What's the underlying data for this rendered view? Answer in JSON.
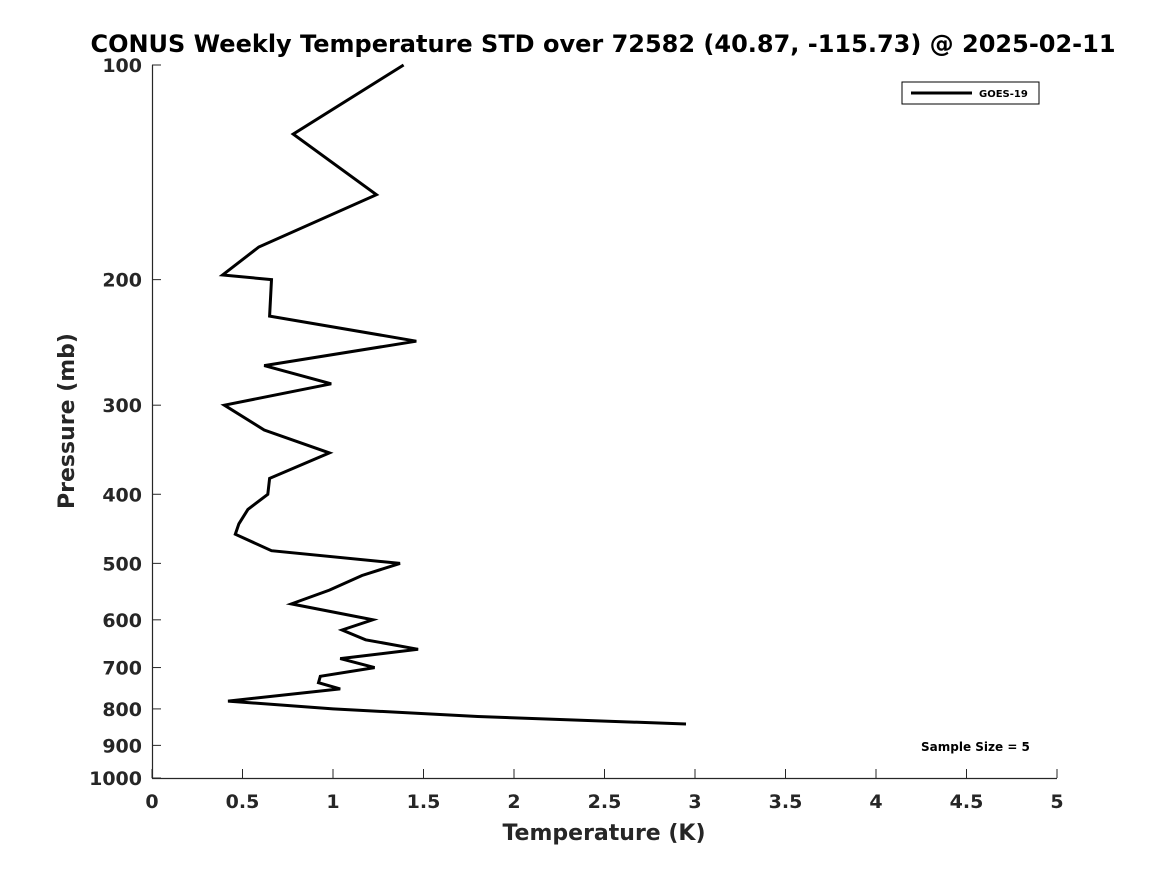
{
  "chart_data": {
    "type": "line",
    "title": "CONUS Weekly Temperature STD over 72582 (40.87, -115.73) @ 2025-02-11",
    "xlabel": "Temperature (K)",
    "ylabel": "Pressure (mb)",
    "xlim": [
      0,
      5
    ],
    "ylim": [
      100,
      1000
    ],
    "y_scale": "log",
    "y_reversed": true,
    "grid": false,
    "legend_position": "top-right",
    "x_ticks": [
      "0",
      "0.5",
      "1",
      "1.5",
      "2",
      "2.5",
      "3",
      "3.5",
      "4",
      "4.5",
      "5"
    ],
    "y_ticks": [
      "100",
      "200",
      "300",
      "400",
      "500",
      "600",
      "700",
      "800",
      "900",
      "1000"
    ],
    "annotation": "Sample Size = 5",
    "series": [
      {
        "name": "GOES-19",
        "color": "#000000",
        "points": [
          {
            "x": 1.39,
            "y": 100
          },
          {
            "x": 0.78,
            "y": 125
          },
          {
            "x": 1.24,
            "y": 152
          },
          {
            "x": 0.59,
            "y": 180
          },
          {
            "x": 0.39,
            "y": 197
          },
          {
            "x": 0.66,
            "y": 200
          },
          {
            "x": 0.65,
            "y": 225
          },
          {
            "x": 1.46,
            "y": 244
          },
          {
            "x": 0.62,
            "y": 264
          },
          {
            "x": 0.99,
            "y": 280
          },
          {
            "x": 0.4,
            "y": 300
          },
          {
            "x": 0.62,
            "y": 325
          },
          {
            "x": 0.98,
            "y": 350
          },
          {
            "x": 0.65,
            "y": 380
          },
          {
            "x": 0.64,
            "y": 400
          },
          {
            "x": 0.53,
            "y": 420
          },
          {
            "x": 0.48,
            "y": 440
          },
          {
            "x": 0.46,
            "y": 455
          },
          {
            "x": 0.66,
            "y": 480
          },
          {
            "x": 1.37,
            "y": 500
          },
          {
            "x": 1.16,
            "y": 520
          },
          {
            "x": 0.98,
            "y": 545
          },
          {
            "x": 0.77,
            "y": 570
          },
          {
            "x": 1.22,
            "y": 600
          },
          {
            "x": 1.05,
            "y": 620
          },
          {
            "x": 1.18,
            "y": 640
          },
          {
            "x": 1.47,
            "y": 660
          },
          {
            "x": 1.04,
            "y": 680
          },
          {
            "x": 1.23,
            "y": 700
          },
          {
            "x": 0.93,
            "y": 720
          },
          {
            "x": 0.92,
            "y": 735
          },
          {
            "x": 1.04,
            "y": 750
          },
          {
            "x": 0.42,
            "y": 780
          },
          {
            "x": 1.0,
            "y": 800
          },
          {
            "x": 1.8,
            "y": 820
          },
          {
            "x": 2.95,
            "y": 840
          }
        ]
      }
    ]
  }
}
